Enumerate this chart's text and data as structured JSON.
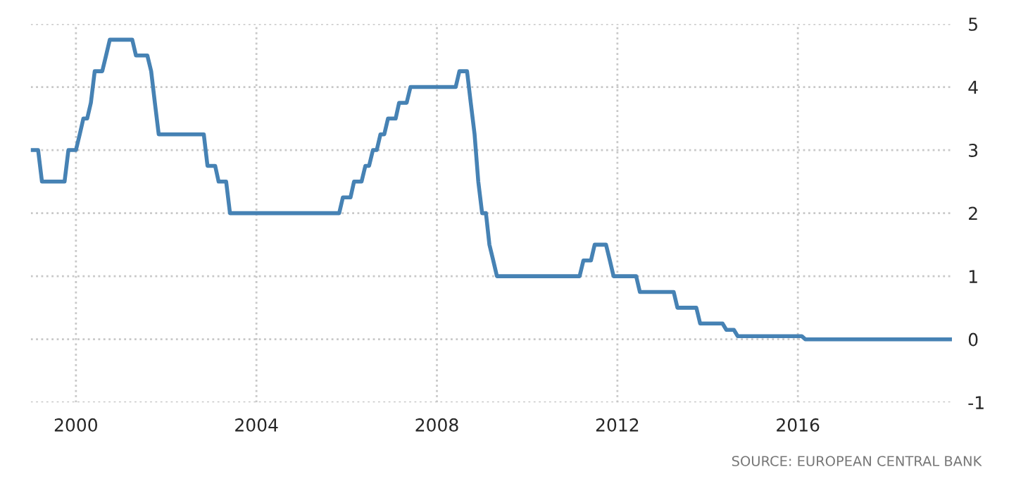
{
  "chart_data": {
    "type": "line",
    "x": [
      "1999-01",
      "1999-03",
      "1999-04",
      "1999-10",
      "1999-11",
      "2000-01",
      "2000-02",
      "2000-03",
      "2000-04",
      "2000-05",
      "2000-06",
      "2000-08",
      "2000-09",
      "2000-10",
      "2001-04",
      "2001-05",
      "2001-08",
      "2001-09",
      "2001-10",
      "2001-11",
      "2002-11",
      "2002-12",
      "2003-02",
      "2003-03",
      "2003-05",
      "2003-06",
      "2005-11",
      "2005-12",
      "2006-02",
      "2006-03",
      "2006-05",
      "2006-06",
      "2006-07",
      "2006-08",
      "2006-09",
      "2006-10",
      "2006-11",
      "2006-12",
      "2007-02",
      "2007-03",
      "2007-05",
      "2007-06",
      "2008-06",
      "2008-07",
      "2008-09",
      "2008-10",
      "2008-11",
      "2008-12",
      "2009-01",
      "2009-02",
      "2009-03",
      "2009-04",
      "2009-05",
      "2011-03",
      "2011-04",
      "2011-06",
      "2011-07",
      "2011-10",
      "2011-11",
      "2011-12",
      "2012-06",
      "2012-07",
      "2013-04",
      "2013-05",
      "2013-10",
      "2013-11",
      "2014-05",
      "2014-06",
      "2014-08",
      "2014-09",
      "2016-02",
      "2016-03",
      "2019-06"
    ],
    "series": [
      {
        "color": "#4682b4",
        "values": [
          3.0,
          3.0,
          2.5,
          2.5,
          3.0,
          3.0,
          3.25,
          3.5,
          3.5,
          3.75,
          4.25,
          4.25,
          4.5,
          4.75,
          4.75,
          4.5,
          4.5,
          4.25,
          3.75,
          3.25,
          3.25,
          2.75,
          2.75,
          2.5,
          2.5,
          2.0,
          2.0,
          2.25,
          2.25,
          2.5,
          2.5,
          2.75,
          2.75,
          3.0,
          3.0,
          3.25,
          3.25,
          3.5,
          3.5,
          3.75,
          3.75,
          4.0,
          4.0,
          4.25,
          4.25,
          3.75,
          3.25,
          2.5,
          2.0,
          2.0,
          1.5,
          1.25,
          1.0,
          1.0,
          1.25,
          1.25,
          1.5,
          1.5,
          1.25,
          1.0,
          1.0,
          0.75,
          0.75,
          0.5,
          0.5,
          0.25,
          0.25,
          0.15,
          0.15,
          0.05,
          0.05,
          0.0,
          0.0
        ]
      }
    ],
    "xlim": [
      "1999-01",
      "2019-06"
    ],
    "xticks": [
      {
        "value": "2000",
        "label": "2000"
      },
      {
        "value": "2004",
        "label": "2004"
      },
      {
        "value": "2008",
        "label": "2008"
      },
      {
        "value": "2012",
        "label": "2012"
      },
      {
        "value": "2016",
        "label": "2016"
      }
    ],
    "ylim": [
      -1,
      5
    ],
    "yticks": [
      -1,
      0,
      1,
      2,
      3,
      4,
      5
    ],
    "grid": true,
    "line_style": "solid",
    "marker": "none",
    "annotations": [
      "SOURCE: EUROPEAN CENTRAL BANK"
    ]
  }
}
